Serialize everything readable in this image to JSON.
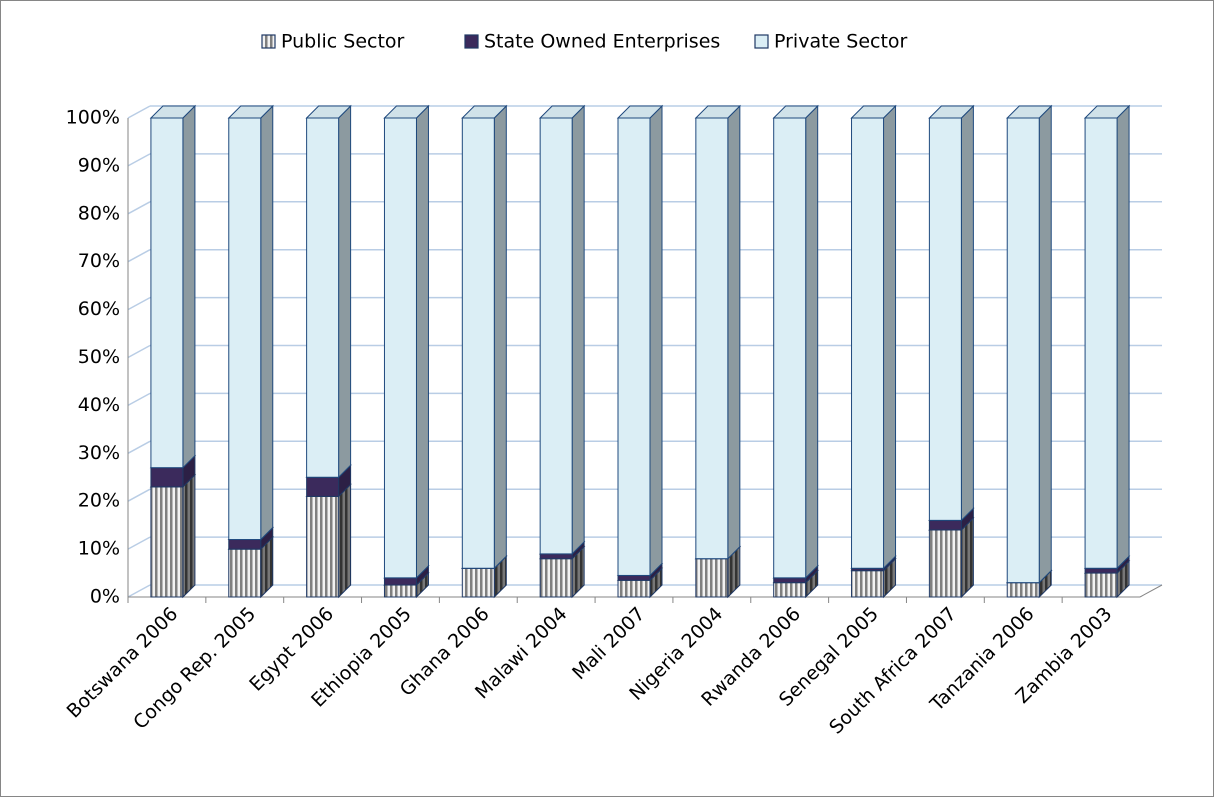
{
  "chart_data": {
    "type": "bar",
    "stacked": true,
    "three_d": true,
    "categories": [
      "Botswana 2006",
      "Congo Rep. 2005",
      "Egypt 2006",
      "Ethiopia 2005",
      "Ghana 2006",
      "Malawi 2004",
      "Mali 2007",
      "Nigeria 2004",
      "Rwanda 2006",
      "Senegal 2005",
      "South Africa 2007",
      "Tanzania 2006",
      "Zambia 2003"
    ],
    "series": [
      {
        "name": "Public Sector",
        "color": "#a6a6a6",
        "pattern": "vertical-stripes",
        "values": [
          23,
          10,
          21,
          2.5,
          6,
          8,
          3.5,
          8,
          3,
          5.5,
          14,
          3,
          5
        ]
      },
      {
        "name": "State Owned Enterprises",
        "color": "#3b2a5c",
        "values": [
          4,
          2,
          4,
          1.5,
          0,
          1,
          1,
          0,
          1,
          0.5,
          2,
          0,
          1
        ]
      },
      {
        "name": "Private Sector",
        "color": "#dbeef5",
        "values": [
          73,
          88,
          75,
          96,
          94,
          91,
          95.5,
          92,
          96,
          94,
          84,
          97,
          94
        ]
      }
    ],
    "ylim": [
      0,
      100
    ],
    "yticks": [
      {
        "value": 0,
        "label": "0%"
      },
      {
        "value": 10,
        "label": "10%"
      },
      {
        "value": 20,
        "label": "20%"
      },
      {
        "value": 30,
        "label": "30%"
      },
      {
        "value": 40,
        "label": "40%"
      },
      {
        "value": 50,
        "label": "50%"
      },
      {
        "value": 60,
        "label": "60%"
      },
      {
        "value": 70,
        "label": "70%"
      },
      {
        "value": 80,
        "label": "80%"
      },
      {
        "value": 90,
        "label": "90%"
      },
      {
        "value": 100,
        "label": "100%"
      }
    ],
    "grid": true,
    "legend": "top"
  }
}
